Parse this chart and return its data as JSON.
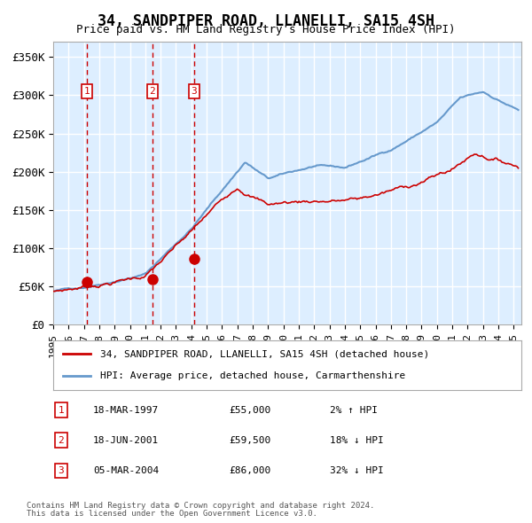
{
  "title": "34, SANDPIPER ROAD, LLANELLI, SA15 4SH",
  "subtitle": "Price paid vs. HM Land Registry's House Price Index (HPI)",
  "ylabel_ticks": [
    "£0",
    "£50K",
    "£100K",
    "£150K",
    "£200K",
    "£250K",
    "£300K",
    "£350K"
  ],
  "ytick_values": [
    0,
    50000,
    100000,
    150000,
    200000,
    250000,
    300000,
    350000
  ],
  "ylim": [
    0,
    370000
  ],
  "xlim_start": 1995.0,
  "xlim_end": 2025.5,
  "transactions": [
    {
      "label": "1",
      "date": 1997.21,
      "price": 55000,
      "date_str": "18-MAR-1997",
      "price_str": "£55,000",
      "hpi_str": "2% ↑ HPI"
    },
    {
      "label": "2",
      "date": 2001.46,
      "price": 59500,
      "date_str": "18-JUN-2001",
      "price_str": "£59,500",
      "hpi_str": "18% ↓ HPI"
    },
    {
      "label": "3",
      "date": 2004.17,
      "price": 86000,
      "date_str": "05-MAR-2004",
      "price_str": "£86,000",
      "hpi_str": "32% ↓ HPI"
    }
  ],
  "hpi_color": "#6699cc",
  "price_color": "#cc0000",
  "vline_color": "#cc0000",
  "box_color": "#cc0000",
  "bg_color": "#ddeeff",
  "grid_color": "#ffffff",
  "legend_label_red": "34, SANDPIPER ROAD, LLANELLI, SA15 4SH (detached house)",
  "legend_label_blue": "HPI: Average price, detached house, Carmarthenshire",
  "footer1": "Contains HM Land Registry data © Crown copyright and database right 2024.",
  "footer2": "This data is licensed under the Open Government Licence v3.0.",
  "xtick_years": [
    1995,
    1996,
    1997,
    1998,
    1999,
    2000,
    2001,
    2002,
    2003,
    2004,
    2005,
    2006,
    2007,
    2008,
    2009,
    2010,
    2011,
    2012,
    2013,
    2014,
    2015,
    2016,
    2017,
    2018,
    2019,
    2020,
    2021,
    2022,
    2023,
    2024,
    2025
  ]
}
